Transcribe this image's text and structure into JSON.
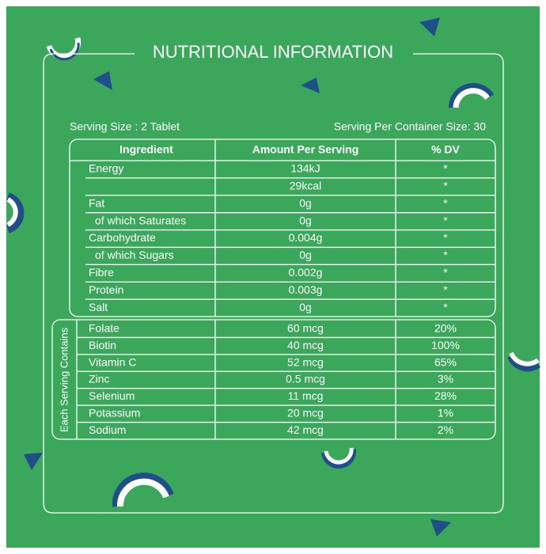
{
  "header": {
    "title": "NUTRITIONAL INFORMATION"
  },
  "serving": {
    "size": "Serving Size : 2 Tablet",
    "per_container": "Serving Per Container Size: 30"
  },
  "table": {
    "headers": [
      "Ingredient",
      "Amount Per Serving",
      "% DV"
    ],
    "rows": [
      {
        "ingredient": "Energy",
        "amount": "134kJ",
        "dv": "*"
      },
      {
        "amount": "29kcal",
        "dv": "*"
      },
      {
        "ingredient": "Fat",
        "amount": "0g",
        "dv": "*"
      },
      {
        "ingredient": "of which Saturates",
        "amount": "0g",
        "dv": "*",
        "indent": true
      },
      {
        "ingredient": "Carbohydrate",
        "amount": "0.004g",
        "dv": "*"
      },
      {
        "ingredient": "of which Sugars",
        "amount": "0g",
        "dv": "*",
        "indent": true
      },
      {
        "ingredient": "Fibre",
        "amount": "0.002g",
        "dv": "*"
      },
      {
        "ingredient": "Protein",
        "amount": "0.003g",
        "dv": "*"
      },
      {
        "ingredient": "Salt",
        "amount": "0g",
        "dv": "*"
      }
    ]
  },
  "micros": {
    "label": "Each Serving Contains",
    "rows": [
      {
        "ingredient": "Folate",
        "amount": "60 mcg",
        "dv": "20%"
      },
      {
        "ingredient": "Biotin",
        "amount": "40 mcg",
        "dv": "100%"
      },
      {
        "ingredient": "Vitamin C",
        "amount": "52 mcg",
        "dv": "65%"
      },
      {
        "ingredient": "Zinc",
        "amount": "0.5 mcg",
        "dv": "3%"
      },
      {
        "ingredient": "Selenium",
        "amount": "11 mcg",
        "dv": "28%"
      },
      {
        "ingredient": "Potassium",
        "amount": "20 mcg",
        "dv": "1%"
      },
      {
        "ingredient": "Sodium",
        "amount": "42 mcg",
        "dv": "2%"
      }
    ]
  }
}
